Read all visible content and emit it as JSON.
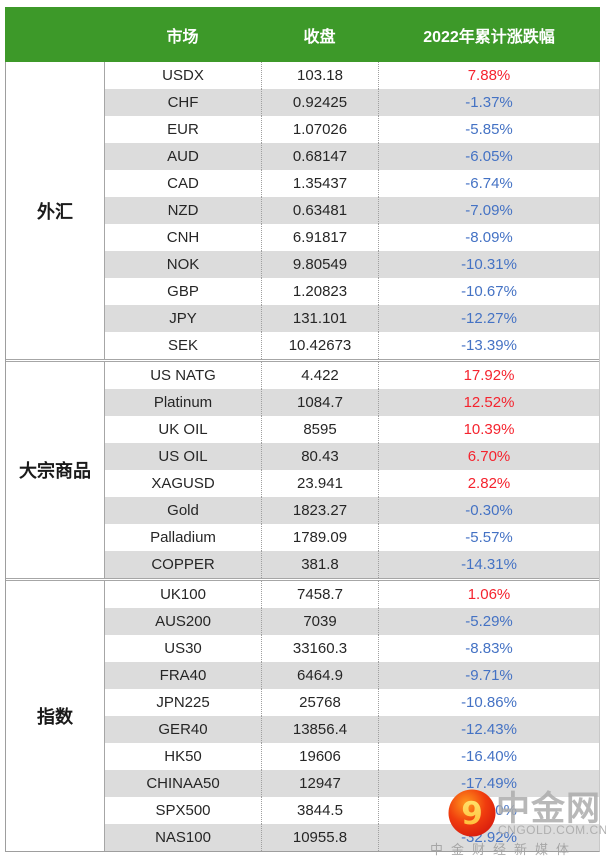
{
  "header": {
    "market": "市场",
    "close": "收盘",
    "change": "2022年累计涨跌幅"
  },
  "sections": [
    {
      "name": "外汇",
      "rows": [
        {
          "market": "USDX",
          "close": "103.18",
          "change": "7.88%"
        },
        {
          "market": "CHF",
          "close": "0.92425",
          "change": "-1.37%"
        },
        {
          "market": "EUR",
          "close": "1.07026",
          "change": "-5.85%"
        },
        {
          "market": "AUD",
          "close": "0.68147",
          "change": "-6.05%"
        },
        {
          "market": "CAD",
          "close": "1.35437",
          "change": "-6.74%"
        },
        {
          "market": "NZD",
          "close": "0.63481",
          "change": "-7.09%"
        },
        {
          "market": "CNH",
          "close": "6.91817",
          "change": "-8.09%"
        },
        {
          "market": "NOK",
          "close": "9.80549",
          "change": "-10.31%"
        },
        {
          "market": "GBP",
          "close": "1.20823",
          "change": "-10.67%"
        },
        {
          "market": "JPY",
          "close": "131.101",
          "change": "-12.27%"
        },
        {
          "market": "SEK",
          "close": "10.42673",
          "change": "-13.39%"
        }
      ]
    },
    {
      "name": "大宗商品",
      "rows": [
        {
          "market": "US NATG",
          "close": "4.422",
          "change": "17.92%"
        },
        {
          "market": "Platinum",
          "close": "1084.7",
          "change": "12.52%"
        },
        {
          "market": "UK OIL",
          "close": "8595",
          "change": "10.39%"
        },
        {
          "market": "US OIL",
          "close": "80.43",
          "change": "6.70%"
        },
        {
          "market": "XAGUSD",
          "close": "23.941",
          "change": "2.82%"
        },
        {
          "market": "Gold",
          "close": "1823.27",
          "change": "-0.30%"
        },
        {
          "market": "Palladium",
          "close": "1789.09",
          "change": "-5.57%"
        },
        {
          "market": "COPPER",
          "close": "381.8",
          "change": "-14.31%"
        }
      ]
    },
    {
      "name": "指数",
      "rows": [
        {
          "market": "UK100",
          "close": "7458.7",
          "change": "1.06%"
        },
        {
          "market": "AUS200",
          "close": "7039",
          "change": "-5.29%"
        },
        {
          "market": "US30",
          "close": "33160.3",
          "change": "-8.83%"
        },
        {
          "market": "FRA40",
          "close": "6464.9",
          "change": "-9.71%"
        },
        {
          "market": "JPN225",
          "close": "25768",
          "change": "-10.86%"
        },
        {
          "market": "GER40",
          "close": "13856.4",
          "change": "-12.43%"
        },
        {
          "market": "HK50",
          "close": "19606",
          "change": "-16.40%"
        },
        {
          "market": "CHINAA50",
          "close": "12947",
          "change": "-17.49%"
        },
        {
          "market": "SPX500",
          "close": "3844.5",
          "change": "-19.40%"
        },
        {
          "market": "NAS100",
          "close": "10955.8",
          "change": "-32.92%"
        }
      ]
    }
  ],
  "watermark": {
    "brand": "中金网",
    "domain": "CNGOLD.COM.CN",
    "tagline": "中金财经新媒体"
  },
  "colors": {
    "header_bg": "#3d9929",
    "positive": "#f5232e",
    "negative": "#4472c4",
    "row_alt": "#dcdcdc",
    "border": "#a6a6a6",
    "watermark": "#acacac"
  }
}
